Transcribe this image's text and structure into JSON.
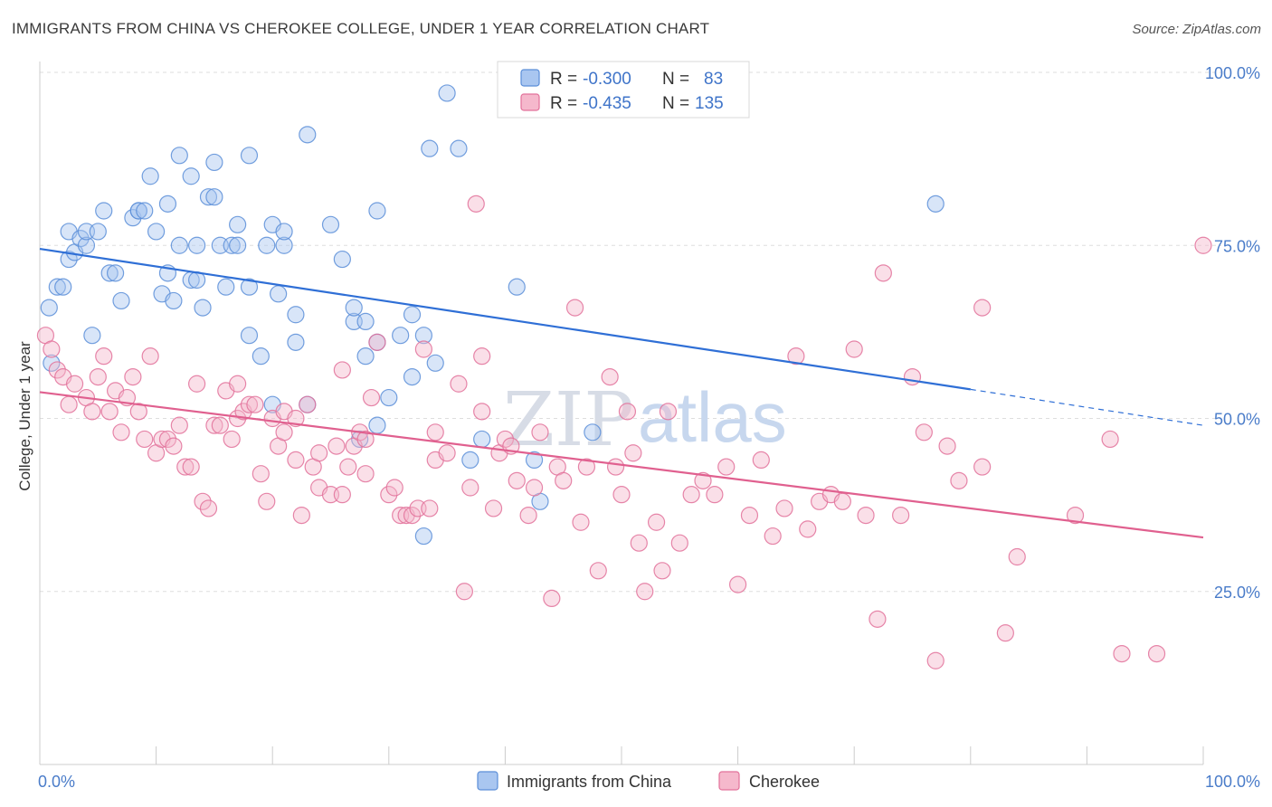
{
  "header": {
    "title": "IMMIGRANTS FROM CHINA VS CHEROKEE COLLEGE, UNDER 1 YEAR CORRELATION CHART",
    "source": "Source: ZipAtlas.com"
  },
  "watermark": {
    "zip": "ZIP",
    "atlas": "atlas"
  },
  "colors": {
    "china": "#5b8ed8",
    "china_fill": "#a9c6f0",
    "cherokee": "#e2719a",
    "cherokee_fill": "#f5b8cc",
    "grid": "#dddddd",
    "tick_text": "#4a7cc9"
  },
  "legend_top": {
    "r_label": "R =",
    "n_label": "N =",
    "rows": [
      {
        "r": "-0.300",
        "n": "83"
      },
      {
        "r": "-0.435",
        "n": "135"
      }
    ]
  },
  "chart_data": {
    "type": "scatter",
    "xlabel": "",
    "ylabel": "College, Under 1 year",
    "xlim": [
      0,
      100
    ],
    "ylim": [
      0,
      100
    ],
    "x_tick_labels": [
      "0.0%",
      "100.0%"
    ],
    "y_tick_labels": [
      {
        "value": 100,
        "label": "100.0%"
      },
      {
        "value": 75,
        "label": "75.0%"
      },
      {
        "value": 50,
        "label": "50.0%"
      },
      {
        "value": 25,
        "label": "25.0%"
      }
    ],
    "grid": true,
    "legend_position": "bottom",
    "series": [
      {
        "name": "Immigrants from China",
        "color": "#5b8ed8",
        "trend": {
          "x0": 0,
          "y0": 74.5,
          "x1": 80,
          "y1": 54.2,
          "dash_to_x": 100,
          "dash_to_y": 49.0
        },
        "points": [
          [
            1,
            58
          ],
          [
            0.8,
            66
          ],
          [
            1.5,
            69
          ],
          [
            2,
            69
          ],
          [
            2.5,
            73
          ],
          [
            2.5,
            77
          ],
          [
            3,
            74
          ],
          [
            3.5,
            76
          ],
          [
            4,
            75
          ],
          [
            4,
            77
          ],
          [
            4.5,
            62
          ],
          [
            5,
            77
          ],
          [
            5.5,
            80
          ],
          [
            6,
            71
          ],
          [
            6.5,
            71
          ],
          [
            7,
            67
          ],
          [
            8,
            79
          ],
          [
            8.5,
            80
          ],
          [
            8.5,
            80
          ],
          [
            9,
            80
          ],
          [
            9.5,
            85
          ],
          [
            10,
            77
          ],
          [
            10.5,
            68
          ],
          [
            11,
            71
          ],
          [
            11,
            81
          ],
          [
            11.5,
            67
          ],
          [
            12,
            88
          ],
          [
            12,
            75
          ],
          [
            13,
            70
          ],
          [
            13,
            85
          ],
          [
            13.5,
            75
          ],
          [
            13.5,
            70
          ],
          [
            14,
            66
          ],
          [
            14.5,
            82
          ],
          [
            15,
            82
          ],
          [
            15,
            87
          ],
          [
            15.5,
            75
          ],
          [
            16,
            69
          ],
          [
            16.5,
            75
          ],
          [
            17,
            75
          ],
          [
            17,
            78
          ],
          [
            18,
            88
          ],
          [
            18,
            69
          ],
          [
            18,
            62
          ],
          [
            19,
            59
          ],
          [
            19.5,
            75
          ],
          [
            20,
            78
          ],
          [
            20,
            52
          ],
          [
            20.5,
            68
          ],
          [
            21,
            75
          ],
          [
            21,
            77
          ],
          [
            22,
            65
          ],
          [
            22,
            61
          ],
          [
            23,
            91
          ],
          [
            23,
            52
          ],
          [
            25,
            78
          ],
          [
            26,
            73
          ],
          [
            27,
            64
          ],
          [
            27,
            66
          ],
          [
            27.5,
            47
          ],
          [
            28,
            59
          ],
          [
            28,
            64
          ],
          [
            29,
            80
          ],
          [
            29,
            61
          ],
          [
            29,
            49
          ],
          [
            30,
            53
          ],
          [
            31,
            62
          ],
          [
            32,
            56
          ],
          [
            32,
            65
          ],
          [
            33,
            33
          ],
          [
            33,
            62
          ],
          [
            33.5,
            89
          ],
          [
            34,
            58
          ],
          [
            35,
            97
          ],
          [
            36,
            89
          ],
          [
            37,
            44
          ],
          [
            38,
            47
          ],
          [
            41,
            69
          ],
          [
            43,
            38
          ],
          [
            47.5,
            48
          ],
          [
            77,
            81
          ],
          [
            42.5,
            44
          ]
        ]
      },
      {
        "name": "Cherokee",
        "color": "#e2719a",
        "trend": {
          "x0": 0,
          "y0": 53.8,
          "x1": 100,
          "y1": 32.8
        },
        "points": [
          [
            0.5,
            62
          ],
          [
            1,
            60
          ],
          [
            1.5,
            57
          ],
          [
            2,
            56
          ],
          [
            2.5,
            52
          ],
          [
            3,
            55
          ],
          [
            4,
            53
          ],
          [
            4.5,
            51
          ],
          [
            5,
            56
          ],
          [
            5.5,
            59
          ],
          [
            6,
            51
          ],
          [
            6.5,
            54
          ],
          [
            7,
            48
          ],
          [
            7.5,
            53
          ],
          [
            8,
            56
          ],
          [
            8.5,
            51
          ],
          [
            9,
            47
          ],
          [
            9.5,
            59
          ],
          [
            10,
            45
          ],
          [
            10.5,
            47
          ],
          [
            11,
            47
          ],
          [
            11.5,
            46
          ],
          [
            12,
            49
          ],
          [
            12.5,
            43
          ],
          [
            13,
            43
          ],
          [
            13.5,
            55
          ],
          [
            14,
            38
          ],
          [
            14.5,
            37
          ],
          [
            15,
            49
          ],
          [
            15.5,
            49
          ],
          [
            16,
            54
          ],
          [
            16.5,
            47
          ],
          [
            17,
            50
          ],
          [
            17,
            55
          ],
          [
            17.5,
            51
          ],
          [
            18,
            52
          ],
          [
            18.5,
            52
          ],
          [
            19,
            42
          ],
          [
            19.5,
            38
          ],
          [
            20,
            50
          ],
          [
            20.5,
            46
          ],
          [
            21,
            48
          ],
          [
            21,
            51
          ],
          [
            22,
            50
          ],
          [
            22,
            44
          ],
          [
            22.5,
            36
          ],
          [
            23,
            52
          ],
          [
            23.5,
            43
          ],
          [
            24,
            40
          ],
          [
            24,
            45
          ],
          [
            25,
            39
          ],
          [
            25.5,
            46
          ],
          [
            26,
            39
          ],
          [
            26,
            57
          ],
          [
            26.5,
            43
          ],
          [
            27,
            46
          ],
          [
            27.5,
            48
          ],
          [
            28,
            42
          ],
          [
            28,
            47
          ],
          [
            28.5,
            53
          ],
          [
            29,
            61
          ],
          [
            30,
            39
          ],
          [
            30.5,
            40
          ],
          [
            31,
            36
          ],
          [
            31.5,
            36
          ],
          [
            32,
            36
          ],
          [
            32.5,
            37
          ],
          [
            33,
            60
          ],
          [
            33.5,
            37
          ],
          [
            34,
            44
          ],
          [
            34,
            48
          ],
          [
            35,
            45
          ],
          [
            36,
            55
          ],
          [
            36.5,
            25
          ],
          [
            37,
            40
          ],
          [
            37.5,
            81
          ],
          [
            38,
            51
          ],
          [
            38,
            59
          ],
          [
            39,
            37
          ],
          [
            39.5,
            45
          ],
          [
            40,
            47
          ],
          [
            40.5,
            46
          ],
          [
            41,
            41
          ],
          [
            42,
            36
          ],
          [
            42.5,
            40
          ],
          [
            43,
            48
          ],
          [
            44,
            24
          ],
          [
            44.5,
            43
          ],
          [
            45,
            41
          ],
          [
            46,
            66
          ],
          [
            46.5,
            35
          ],
          [
            47,
            43
          ],
          [
            48,
            28
          ],
          [
            49,
            56
          ],
          [
            49.5,
            43
          ],
          [
            50,
            39
          ],
          [
            50.5,
            51
          ],
          [
            51,
            45
          ],
          [
            51.5,
            32
          ],
          [
            52,
            25
          ],
          [
            53,
            35
          ],
          [
            53.5,
            28
          ],
          [
            54,
            51
          ],
          [
            55,
            32
          ],
          [
            56,
            39
          ],
          [
            57,
            41
          ],
          [
            58,
            39
          ],
          [
            59,
            43
          ],
          [
            60,
            26
          ],
          [
            61,
            36
          ],
          [
            62,
            44
          ],
          [
            63,
            33
          ],
          [
            64,
            37
          ],
          [
            65,
            59
          ],
          [
            66,
            34
          ],
          [
            67,
            38
          ],
          [
            68,
            39
          ],
          [
            69,
            38
          ],
          [
            70,
            60
          ],
          [
            71,
            36
          ],
          [
            72,
            21
          ],
          [
            72.5,
            71
          ],
          [
            74,
            36
          ],
          [
            75,
            56
          ],
          [
            76,
            48
          ],
          [
            77,
            15
          ],
          [
            78,
            46
          ],
          [
            79,
            41
          ],
          [
            81,
            43
          ],
          [
            81,
            66
          ],
          [
            83,
            19
          ],
          [
            84,
            30
          ],
          [
            89,
            36
          ],
          [
            92,
            47
          ],
          [
            93,
            16
          ],
          [
            96,
            16
          ],
          [
            100,
            75
          ]
        ]
      }
    ]
  },
  "legend_bottom": [
    {
      "label": "Immigrants from China"
    },
    {
      "label": "Cherokee"
    }
  ]
}
